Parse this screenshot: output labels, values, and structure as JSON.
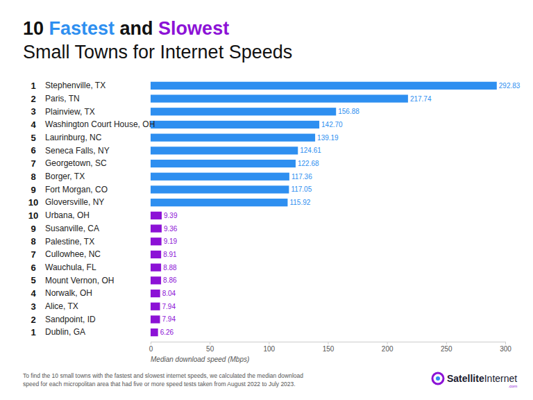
{
  "chart_data": {
    "type": "bar",
    "orientation": "horizontal",
    "title": "10 Fastest and Slowest",
    "subtitle": "Small Towns for Internet Speeds",
    "x_label": "Median download speed (Mbps)",
    "ranks": [
      1,
      2,
      3,
      4,
      5,
      6,
      7,
      8,
      9,
      10,
      10,
      9,
      8,
      7,
      6,
      5,
      4,
      3,
      2,
      1
    ],
    "categories": [
      "Stephenville, TX",
      "Paris, TN",
      "Plainview, TX",
      "Washington Court House, OH",
      "Laurinburg, NC",
      "Seneca Falls, NY",
      "Georgetown, SC",
      "Borger, TX",
      "Fort Morgan, CO",
      "Gloversville, NY",
      "Urbana, OH",
      "Susanville, CA",
      "Palestine, TX",
      "Cullowhee, NC",
      "Wauchula, FL",
      "Mount Vernon, OH",
      "Norwalk, OH",
      "Alice, TX",
      "Sandpoint, ID",
      "Dublin, GA"
    ],
    "values": [
      292.83,
      217.74,
      156.88,
      142.7,
      139.19,
      124.61,
      122.68,
      117.36,
      117.05,
      115.92,
      9.39,
      9.36,
      9.19,
      8.91,
      8.88,
      8.86,
      8.04,
      7.94,
      7.94,
      6.26
    ],
    "value_labels": [
      "292.83",
      "217.74",
      "156.88",
      "142.70",
      "139.19",
      "124.61",
      "122.68",
      "117.36",
      "117.05",
      "115.92",
      "9.39",
      "9.36",
      "9.19",
      "8.91",
      "8.88",
      "8.86",
      "8.04",
      "7.94",
      "7.94",
      "6.26"
    ],
    "colors": [
      "#2e8ff0",
      "#2e8ff0",
      "#2e8ff0",
      "#2e8ff0",
      "#2e8ff0",
      "#2e8ff0",
      "#2e8ff0",
      "#2e8ff0",
      "#2e8ff0",
      "#2e8ff0",
      "#8c12d6",
      "#8c12d6",
      "#8c12d6",
      "#8c12d6",
      "#8c12d6",
      "#8c12d6",
      "#8c12d6",
      "#8c12d6",
      "#8c12d6",
      "#8c12d6"
    ],
    "xlim": [
      0,
      300
    ],
    "xticks": [
      0,
      50,
      100,
      150,
      200,
      250,
      300
    ],
    "grid": false,
    "data_labels": true,
    "annotations": [
      "To find the 10 small towns with the fastest and slowest internet speeds, we calculated the median download",
      "speed for each micropolitan area that had five or more speed tests taken from August 2022 to July 2023."
    ],
    "source": [
      "Satellite",
      "Internet",
      ".com"
    ]
  }
}
